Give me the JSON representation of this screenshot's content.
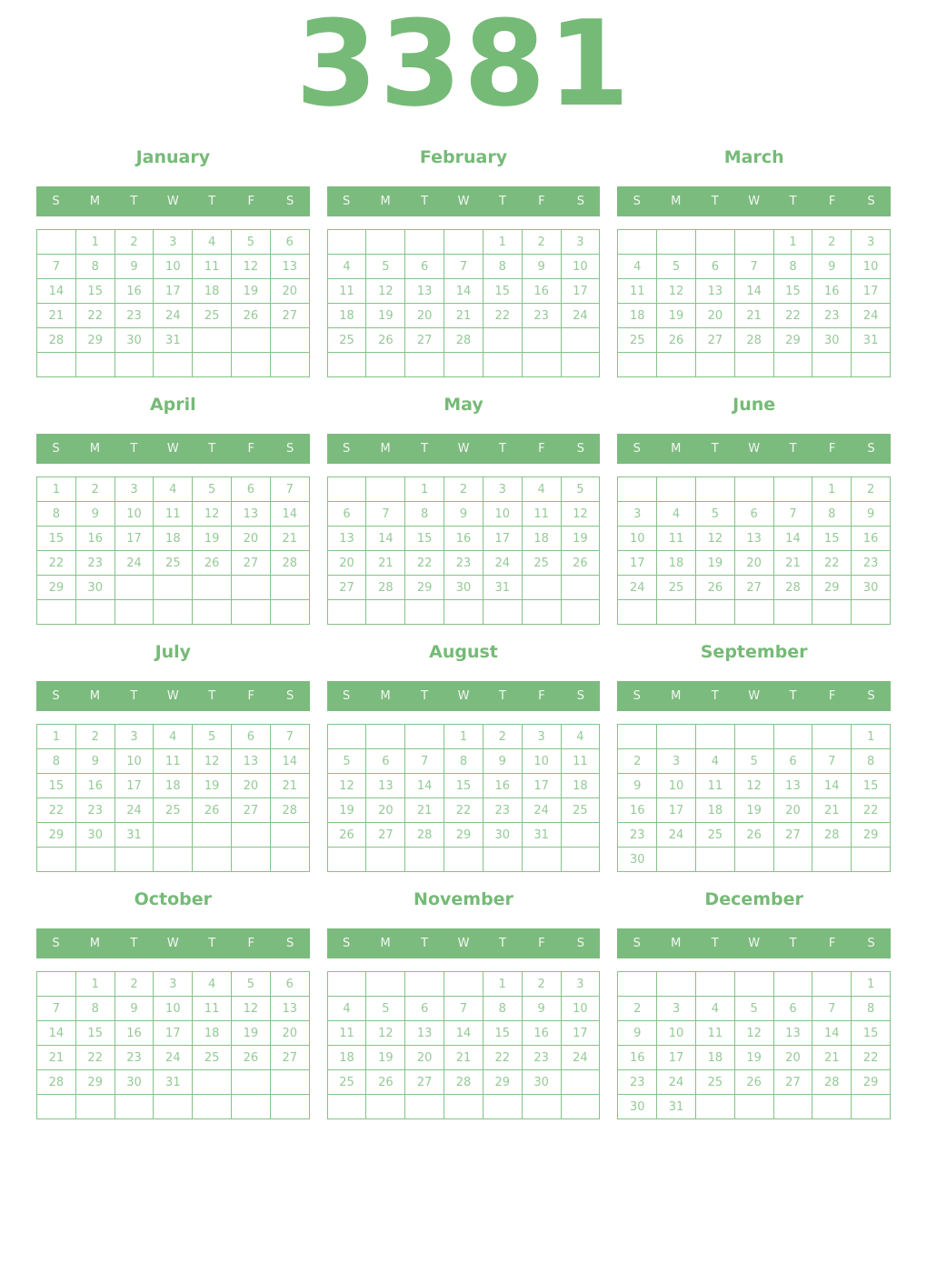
{
  "year": "3381",
  "weekdays": [
    "S",
    "M",
    "T",
    "W",
    "T",
    "F",
    "S"
  ],
  "colors": {
    "title_green": "#76ba77",
    "header_bar_green": "#7cbb7e",
    "grid_border_green": "#85c287",
    "day_number_green": "#95ca96",
    "header_letter_white": "#f2f7f2"
  },
  "months": [
    {
      "name": "January",
      "weeks": [
        [
          "",
          "1",
          "2",
          "3",
          "4",
          "5",
          "6"
        ],
        [
          "7",
          "8",
          "9",
          "10",
          "11",
          "12",
          "13"
        ],
        [
          "14",
          "15",
          "16",
          "17",
          "18",
          "19",
          "20"
        ],
        [
          "21",
          "22",
          "23",
          "24",
          "25",
          "26",
          "27"
        ],
        [
          "28",
          "29",
          "30",
          "31",
          "",
          "",
          ""
        ],
        [
          "",
          "",
          "",
          "",
          "",
          "",
          ""
        ]
      ]
    },
    {
      "name": "February",
      "weeks": [
        [
          "",
          "",
          "",
          "",
          "1",
          "2",
          "3"
        ],
        [
          "4",
          "5",
          "6",
          "7",
          "8",
          "9",
          "10"
        ],
        [
          "11",
          "12",
          "13",
          "14",
          "15",
          "16",
          "17"
        ],
        [
          "18",
          "19",
          "20",
          "21",
          "22",
          "23",
          "24"
        ],
        [
          "25",
          "26",
          "27",
          "28",
          "",
          "",
          ""
        ],
        [
          "",
          "",
          "",
          "",
          "",
          "",
          ""
        ]
      ]
    },
    {
      "name": "March",
      "weeks": [
        [
          "",
          "",
          "",
          "",
          "1",
          "2",
          "3"
        ],
        [
          "4",
          "5",
          "6",
          "7",
          "8",
          "9",
          "10"
        ],
        [
          "11",
          "12",
          "13",
          "14",
          "15",
          "16",
          "17"
        ],
        [
          "18",
          "19",
          "20",
          "21",
          "22",
          "23",
          "24"
        ],
        [
          "25",
          "26",
          "27",
          "28",
          "29",
          "30",
          "31"
        ],
        [
          "",
          "",
          "",
          "",
          "",
          "",
          ""
        ]
      ]
    },
    {
      "name": "April",
      "weeks": [
        [
          "1",
          "2",
          "3",
          "4",
          "5",
          "6",
          "7"
        ],
        [
          "8",
          "9",
          "10",
          "11",
          "12",
          "13",
          "14"
        ],
        [
          "15",
          "16",
          "17",
          "18",
          "19",
          "20",
          "21"
        ],
        [
          "22",
          "23",
          "24",
          "25",
          "26",
          "27",
          "28"
        ],
        [
          "29",
          "30",
          "",
          "",
          "",
          "",
          ""
        ],
        [
          "",
          "",
          "",
          "",
          "",
          "",
          ""
        ]
      ]
    },
    {
      "name": "May",
      "weeks": [
        [
          "",
          "",
          "1",
          "2",
          "3",
          "4",
          "5"
        ],
        [
          "6",
          "7",
          "8",
          "9",
          "10",
          "11",
          "12"
        ],
        [
          "13",
          "14",
          "15",
          "16",
          "17",
          "18",
          "19"
        ],
        [
          "20",
          "21",
          "22",
          "23",
          "24",
          "25",
          "26"
        ],
        [
          "27",
          "28",
          "29",
          "30",
          "31",
          "",
          ""
        ],
        [
          "",
          "",
          "",
          "",
          "",
          "",
          ""
        ]
      ]
    },
    {
      "name": "June",
      "weeks": [
        [
          "",
          "",
          "",
          "",
          "",
          "1",
          "2"
        ],
        [
          "3",
          "4",
          "5",
          "6",
          "7",
          "8",
          "9"
        ],
        [
          "10",
          "11",
          "12",
          "13",
          "14",
          "15",
          "16"
        ],
        [
          "17",
          "18",
          "19",
          "20",
          "21",
          "22",
          "23"
        ],
        [
          "24",
          "25",
          "26",
          "27",
          "28",
          "29",
          "30"
        ],
        [
          "",
          "",
          "",
          "",
          "",
          "",
          ""
        ]
      ]
    },
    {
      "name": "July",
      "weeks": [
        [
          "1",
          "2",
          "3",
          "4",
          "5",
          "6",
          "7"
        ],
        [
          "8",
          "9",
          "10",
          "11",
          "12",
          "13",
          "14"
        ],
        [
          "15",
          "16",
          "17",
          "18",
          "19",
          "20",
          "21"
        ],
        [
          "22",
          "23",
          "24",
          "25",
          "26",
          "27",
          "28"
        ],
        [
          "29",
          "30",
          "31",
          "",
          "",
          "",
          ""
        ],
        [
          "",
          "",
          "",
          "",
          "",
          "",
          ""
        ]
      ]
    },
    {
      "name": "August",
      "weeks": [
        [
          "",
          "",
          "",
          "1",
          "2",
          "3",
          "4"
        ],
        [
          "5",
          "6",
          "7",
          "8",
          "9",
          "10",
          "11"
        ],
        [
          "12",
          "13",
          "14",
          "15",
          "16",
          "17",
          "18"
        ],
        [
          "19",
          "20",
          "21",
          "22",
          "23",
          "24",
          "25"
        ],
        [
          "26",
          "27",
          "28",
          "29",
          "30",
          "31",
          ""
        ],
        [
          "",
          "",
          "",
          "",
          "",
          "",
          ""
        ]
      ]
    },
    {
      "name": "September",
      "weeks": [
        [
          "",
          "",
          "",
          "",
          "",
          "",
          "1"
        ],
        [
          "2",
          "3",
          "4",
          "5",
          "6",
          "7",
          "8"
        ],
        [
          "9",
          "10",
          "11",
          "12",
          "13",
          "14",
          "15"
        ],
        [
          "16",
          "17",
          "18",
          "19",
          "20",
          "21",
          "22"
        ],
        [
          "23",
          "24",
          "25",
          "26",
          "27",
          "28",
          "29"
        ],
        [
          "30",
          "",
          "",
          "",
          "",
          "",
          ""
        ]
      ]
    },
    {
      "name": "October",
      "weeks": [
        [
          "",
          "1",
          "2",
          "3",
          "4",
          "5",
          "6"
        ],
        [
          "7",
          "8",
          "9",
          "10",
          "11",
          "12",
          "13"
        ],
        [
          "14",
          "15",
          "16",
          "17",
          "18",
          "19",
          "20"
        ],
        [
          "21",
          "22",
          "23",
          "24",
          "25",
          "26",
          "27"
        ],
        [
          "28",
          "29",
          "30",
          "31",
          "",
          "",
          ""
        ],
        [
          "",
          "",
          "",
          "",
          "",
          "",
          ""
        ]
      ]
    },
    {
      "name": "November",
      "weeks": [
        [
          "",
          "",
          "",
          "",
          "1",
          "2",
          "3"
        ],
        [
          "4",
          "5",
          "6",
          "7",
          "8",
          "9",
          "10"
        ],
        [
          "11",
          "12",
          "13",
          "14",
          "15",
          "16",
          "17"
        ],
        [
          "18",
          "19",
          "20",
          "21",
          "22",
          "23",
          "24"
        ],
        [
          "25",
          "26",
          "27",
          "28",
          "29",
          "30",
          ""
        ],
        [
          "",
          "",
          "",
          "",
          "",
          "",
          ""
        ]
      ]
    },
    {
      "name": "December",
      "weeks": [
        [
          "",
          "",
          "",
          "",
          "",
          "",
          "1"
        ],
        [
          "2",
          "3",
          "4",
          "5",
          "6",
          "7",
          "8"
        ],
        [
          "9",
          "10",
          "11",
          "12",
          "13",
          "14",
          "15"
        ],
        [
          "16",
          "17",
          "18",
          "19",
          "20",
          "21",
          "22"
        ],
        [
          "23",
          "24",
          "25",
          "26",
          "27",
          "28",
          "29"
        ],
        [
          "30",
          "31",
          "",
          "",
          "",
          "",
          ""
        ]
      ]
    }
  ]
}
